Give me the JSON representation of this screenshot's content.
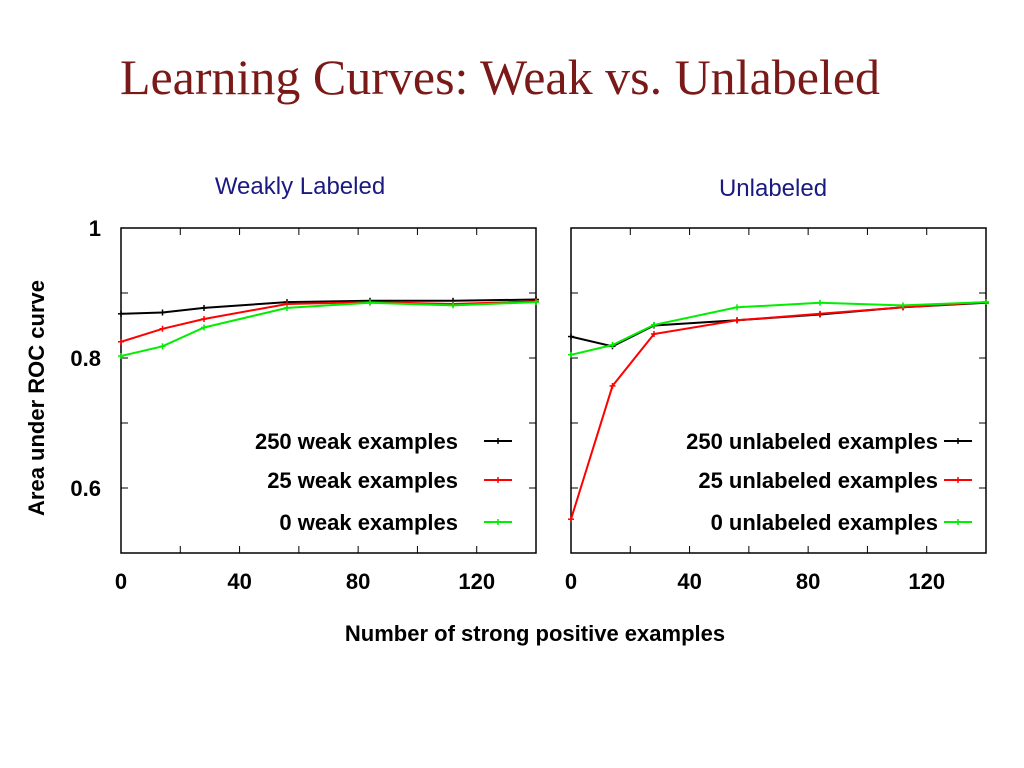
{
  "slide": {
    "title": "Learning Curves: Weak vs. Unlabeled"
  },
  "shared": {
    "xlabel": "Number of strong positive examples",
    "ylabel": "Area under ROC curve"
  },
  "colors": {
    "title": "#7a1a18",
    "panel_title": "#1a1a80",
    "series_250": "#000000",
    "series_25": "#ff0000",
    "series_0": "#00ee00"
  },
  "chart_data": [
    {
      "type": "line",
      "title": "Weakly Labeled",
      "xlabel": "Number of strong positive examples",
      "ylabel": "Area under ROC curve",
      "xlim": [
        0,
        140
      ],
      "ylim": [
        0.5,
        1
      ],
      "xticks": [
        0,
        40,
        80,
        120
      ],
      "yticks": [
        0.6,
        0.8,
        1
      ],
      "ytick_labels": [
        "0.6",
        "0.8",
        "1"
      ],
      "xtick_labels": [
        "0",
        "40",
        "80",
        "120"
      ],
      "grid": false,
      "legend": "lower-right",
      "series": [
        {
          "name": "250 weak examples",
          "color": "#000000",
          "x": [
            0,
            14,
            28,
            56,
            84,
            112,
            140
          ],
          "y": [
            0.868,
            0.87,
            0.877,
            0.886,
            0.888,
            0.888,
            0.89
          ]
        },
        {
          "name": "25 weak examples",
          "color": "#ff0000",
          "x": [
            0,
            14,
            28,
            56,
            84,
            112,
            140
          ],
          "y": [
            0.825,
            0.845,
            0.86,
            0.883,
            0.886,
            0.883,
            0.887
          ]
        },
        {
          "name": "0 weak examples",
          "color": "#00ee00",
          "x": [
            0,
            14,
            28,
            56,
            84,
            112,
            140
          ],
          "y": [
            0.803,
            0.818,
            0.847,
            0.877,
            0.885,
            0.881,
            0.886
          ]
        }
      ]
    },
    {
      "type": "line",
      "title": "Unlabeled",
      "xlabel": "Number of strong positive examples",
      "ylabel": "Area under ROC curve",
      "xlim": [
        0,
        140
      ],
      "ylim": [
        0.5,
        1
      ],
      "xticks": [
        0,
        40,
        80,
        120
      ],
      "yticks": [
        0.6,
        0.8,
        1
      ],
      "xtick_labels": [
        "0",
        "40",
        "80",
        "120"
      ],
      "grid": false,
      "legend": "lower-right",
      "series": [
        {
          "name": "250 unlabeled examples",
          "color": "#000000",
          "x": [
            0,
            14,
            28,
            56,
            84,
            112,
            140
          ],
          "y": [
            0.833,
            0.818,
            0.85,
            0.858,
            0.867,
            0.878,
            0.885
          ]
        },
        {
          "name": "25 unlabeled examples",
          "color": "#ff0000",
          "x": [
            0,
            14,
            28,
            56,
            84,
            112,
            140
          ],
          "y": [
            0.552,
            0.757,
            0.837,
            0.858,
            0.868,
            0.878,
            0.886
          ]
        },
        {
          "name": "0 unlabeled examples",
          "color": "#00ee00",
          "x": [
            0,
            14,
            28,
            56,
            84,
            112,
            140
          ],
          "y": [
            0.805,
            0.82,
            0.851,
            0.878,
            0.885,
            0.881,
            0.886
          ]
        }
      ]
    }
  ]
}
